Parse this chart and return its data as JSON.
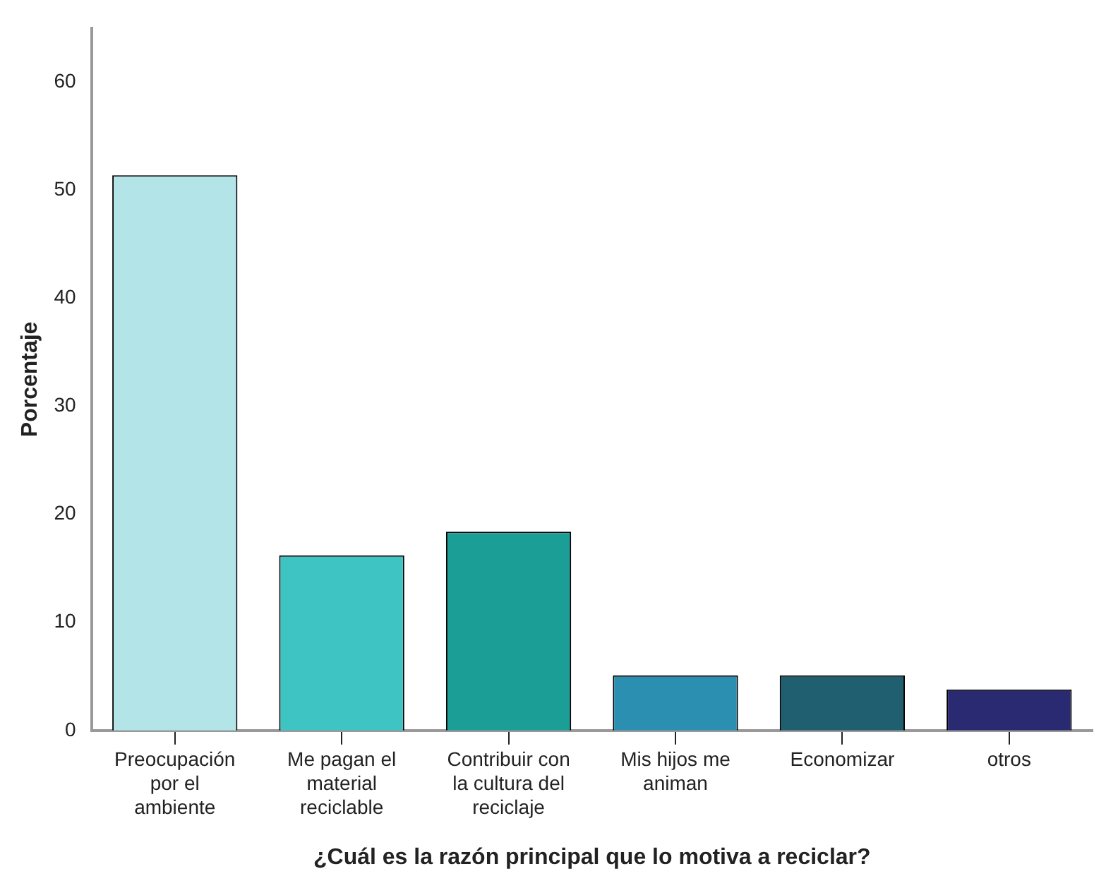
{
  "chart_data": {
    "type": "bar",
    "xlabel": "¿Cuál es la razón principal que lo motiva a reciclar?",
    "ylabel": "Porcentaje",
    "categories": [
      "Preocupación\npor el\nambiente",
      "Me pagan el\nmaterial\nreciclable",
      "Contribuir con\nla cultura del\nreciclaje",
      "Mis hijos me\naniman",
      "Economizar",
      "otros"
    ],
    "values": [
      51.4,
      16.2,
      18.4,
      5.1,
      5.1,
      3.8
    ],
    "colors": [
      "#b3e5e8",
      "#3fc4c4",
      "#1a9e96",
      "#2a8fb0",
      "#1f5f70",
      "#2a2a72"
    ],
    "ylim": [
      0,
      65
    ],
    "yticks": [
      0,
      10,
      20,
      30,
      40,
      50,
      60
    ],
    "grid": false,
    "legend": false
  }
}
